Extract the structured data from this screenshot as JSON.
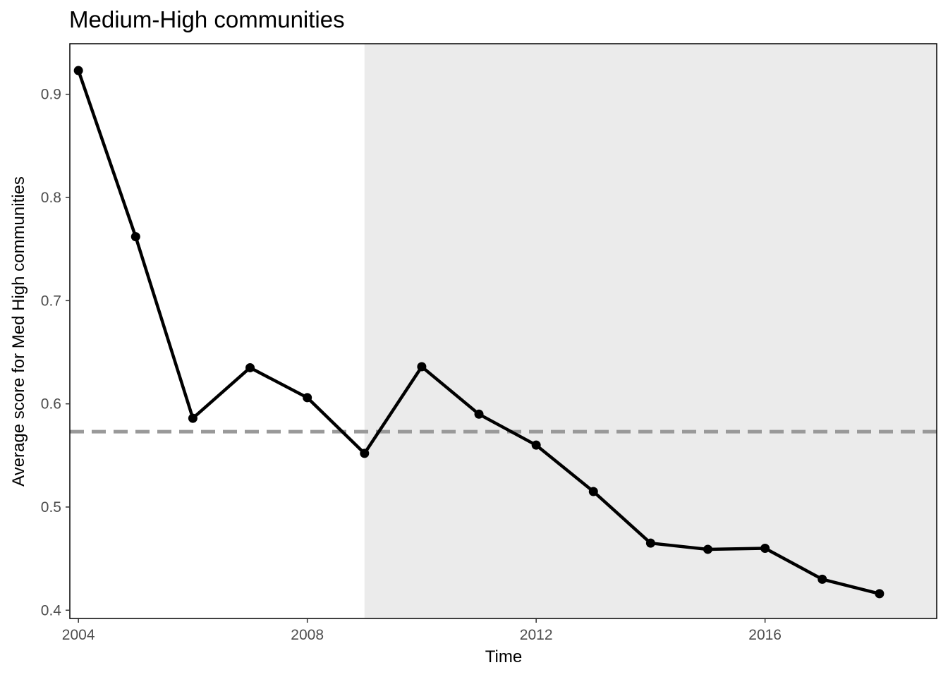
{
  "chart_data": {
    "type": "line",
    "title": "Medium-High communities",
    "xlabel": "Time",
    "ylabel": "Average score for Med High communities",
    "xlim": [
      2003.85,
      2019.0
    ],
    "ylim": [
      0.392,
      0.949
    ],
    "xticks": [
      2004,
      2008,
      2012,
      2016
    ],
    "xtick_labels": [
      "2004",
      "2008",
      "2012",
      "2016"
    ],
    "yticks": [
      0.4,
      0.5,
      0.6,
      0.7,
      0.8,
      0.9
    ],
    "ytick_labels": [
      "0.4",
      "0.5",
      "0.6",
      "0.7",
      "0.8",
      "0.9"
    ],
    "grid": false,
    "shaded_region": {
      "x_start": 2009,
      "x_end": 2019.0,
      "color": "#ebebeb"
    },
    "reference_line": {
      "y": 0.573,
      "style": "dashed",
      "color": "#999999"
    },
    "series": [
      {
        "color": "#000000",
        "x": [
          2004,
          2005,
          2006,
          2007,
          2008,
          2009,
          2010,
          2011,
          2012,
          2013,
          2014,
          2015,
          2016,
          2017,
          2018
        ],
        "y": [
          0.923,
          0.762,
          0.586,
          0.635,
          0.606,
          0.552,
          0.636,
          0.59,
          0.56,
          0.515,
          0.465,
          0.459,
          0.46,
          0.43,
          0.416
        ]
      }
    ]
  }
}
